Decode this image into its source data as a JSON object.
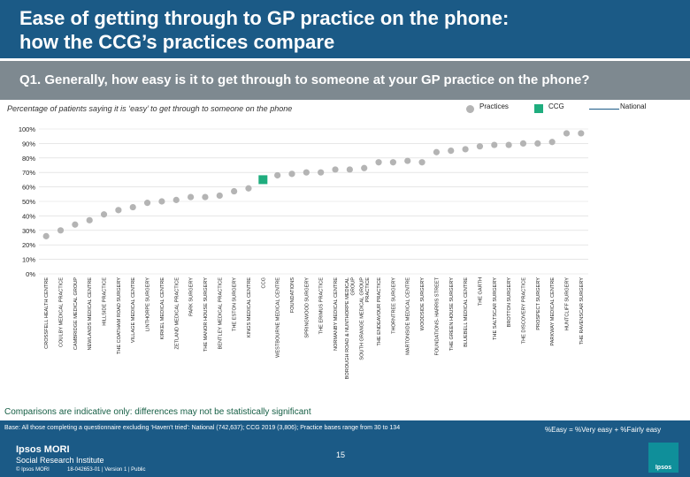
{
  "header": {
    "title": "Ease of getting through to GP practice on the phone:\nhow the CCG’s practices compare"
  },
  "question": "Q1. Generally, how easy is it to get through to someone at your GP practice on the phone?",
  "subtitle": "Percentage of patients saying it is ‘easy’ to get through to someone on the phone",
  "colors": {
    "practice": "#b4b4b4",
    "ccg": "#1fad7e",
    "national": "#1b5a86",
    "header": "#1b5a86",
    "qbar": "#7e8990"
  },
  "chart_data": {
    "type": "scatter",
    "title": "",
    "ylabel": "",
    "ylim": [
      0,
      100
    ],
    "yticks": [
      "0%",
      "10%",
      "20%",
      "30%",
      "40%",
      "50%",
      "60%",
      "70%",
      "80%",
      "90%",
      "100%"
    ],
    "legend": {
      "practices": "Practices",
      "ccg": "CCG",
      "national": "National",
      "position": "top-right"
    },
    "national_value": null,
    "categories": [
      "CROSSFELL HEALTH CENTRE",
      "COULBY MEDICAL PRACTICE",
      "CAMBRIDGE MEDICAL GROUP",
      "NEWLANDS MEDICAL CENTRE",
      "HILLSIDE PRACTICE",
      "THE COATHAM ROAD SURGERY",
      "VILLAGE MEDICAL CENTRE",
      "LINTHORPE SURGERY",
      "KIRKEL MEDICAL CENTRE",
      "ZETLAND MEDICAL PRACTICE",
      "PARK SURGERY",
      "THE MANOR HOUSE SURGERY",
      "BENTLEY MEDICAL PRACTICE",
      "THE ESTON SURGERY",
      "KINGS MEDICAL CENTRE",
      "CCG",
      "WESTBOURNE MEDICAL CENTRE",
      "FOUNDATIONS",
      "SPRINGWOOD SURGERY",
      "THE ERIMUS PRACTICE",
      "NORMANBY MEDICAL CENTRE",
      "BOROUGH ROAD & NUNTHORPE MEDICAL GROUP",
      "SOUTH GRANGE MEDICAL GROUP PRACTICE",
      "THE ENDEAVOUR PRACTICE",
      "THORNTREE SURGERY",
      "MARTONSIDE MEDICAL CENTRE",
      "WOODSIDE SURGERY",
      "FOUNDATIONS- HARRIS STREET",
      "THE GREEN HOUSE SURGERY",
      "BLUEBELL MEDICAL CENTRE",
      "THE GARTH",
      "THE SALTSCAR SURGERY",
      "BROTTON SURGERY",
      "THE DISCOVERY PRACTICE",
      "PROSPECT SURGERY",
      "PARKWAY MEDICAL CENTRE",
      "HUNTCLIFF SURGERY",
      "THE RAVENSCAR SURGERY"
    ],
    "values": [
      26,
      30,
      34,
      37,
      41,
      44,
      46,
      49,
      50,
      51,
      53,
      53,
      54,
      57,
      59,
      65,
      68,
      69,
      70,
      70,
      72,
      72,
      73,
      77,
      77,
      78,
      77,
      84,
      85,
      86,
      88,
      89,
      89,
      90,
      90,
      91,
      97,
      97
    ],
    "ccg_index": 15
  },
  "footer": {
    "note": "Comparisons are indicative only: differences may not be statistically significant",
    "base": "Base: All those completing a questionnaire excluding ‘Haven’t tried’: National (742,637); CCG 2019 (3,806); Practice bases range from 30 to 134",
    "definition": "%Easy = %Very easy + %Fairly easy",
    "logo_main": "Ipsos MORI",
    "logo_sub": "Social Research Institute",
    "copyright": "© Ipsos MORI",
    "version": "18-042653-01 | Version 1 | Public",
    "page": "15",
    "badge": "Ipsos"
  }
}
